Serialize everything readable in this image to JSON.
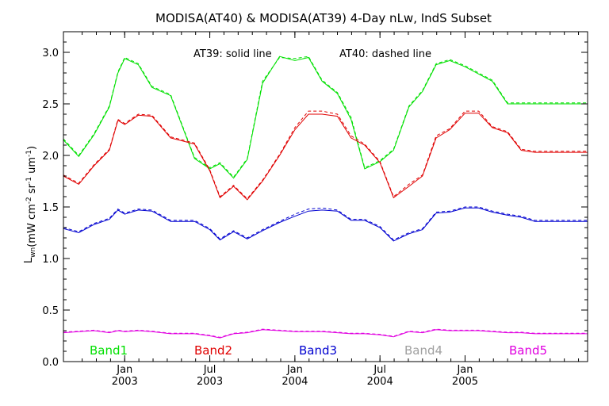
{
  "chart_data": {
    "type": "line",
    "title": "MODISA(AT40) & MODISA(AT39) 4-Day nLw, IndS Subset",
    "ylabel_main": "L",
    "ylabel_sub": "wn",
    "ylabel_unit": "(mW cm",
    "ylabel_sup1": "-2",
    "ylabel_sr": " sr",
    "ylabel_sup2": "-1",
    "ylabel_um": " um",
    "ylabel_sup3": "-1",
    "ylabel_close": ")",
    "annotation_solid": "AT39: solid line",
    "annotation_dashed": "AT40: dashed line",
    "ylim": [
      0.0,
      3.2
    ],
    "y_ticks": [
      "0.0",
      "0.5",
      "1.0",
      "1.5",
      "2.0",
      "2.5",
      "3.0"
    ],
    "x_ticks": [
      {
        "month": "Jan",
        "year": "2003",
        "t": 2003.0
      },
      {
        "month": "Jul",
        "year": "2003",
        "t": 2003.5
      },
      {
        "month": "Jan",
        "year": "2004",
        "t": 2004.0
      },
      {
        "month": "Jul",
        "year": "2004",
        "t": 2004.5
      },
      {
        "month": "Jan",
        "year": "2005",
        "t": 2005.0
      }
    ],
    "xlim": [
      2002.64,
      2005.72
    ],
    "x": [
      2002.64,
      2002.73,
      2002.82,
      2002.91,
      2002.96,
      2003.0,
      2003.08,
      2003.16,
      2003.27,
      2003.41,
      2003.5,
      2003.56,
      2003.64,
      2003.72,
      2003.81,
      2003.91,
      2004.0,
      2004.08,
      2004.16,
      2004.25,
      2004.33,
      2004.41,
      2004.5,
      2004.58,
      2004.67,
      2004.75,
      2004.83,
      2004.91,
      2005.0,
      2005.08,
      2005.16,
      2005.25,
      2005.33,
      2005.41,
      2005.5,
      2005.58,
      2005.66,
      2005.72
    ],
    "series": [
      {
        "name": "Band1",
        "color": "#00e000",
        "solid": [
          2.15,
          1.99,
          2.2,
          2.47,
          2.8,
          2.94,
          2.88,
          2.66,
          2.58,
          1.97,
          1.87,
          1.92,
          1.78,
          1.96,
          2.7,
          2.96,
          2.92,
          2.95,
          2.72,
          2.6,
          2.35,
          1.87,
          1.94,
          2.05,
          2.47,
          2.62,
          2.88,
          2.92,
          2.86,
          2.79,
          2.72,
          2.5,
          2.5,
          2.5,
          2.5,
          2.5,
          2.5,
          2.5
        ],
        "dashed": [
          2.16,
          2.0,
          2.21,
          2.48,
          2.81,
          2.95,
          2.89,
          2.67,
          2.59,
          1.98,
          1.88,
          1.93,
          1.79,
          1.97,
          2.72,
          2.95,
          2.94,
          2.96,
          2.73,
          2.61,
          2.37,
          1.88,
          1.95,
          2.06,
          2.48,
          2.63,
          2.89,
          2.93,
          2.87,
          2.8,
          2.73,
          2.51,
          2.51,
          2.51,
          2.51,
          2.51,
          2.51,
          2.51
        ]
      },
      {
        "name": "Band2",
        "color": "#e00000",
        "solid": [
          1.8,
          1.72,
          1.9,
          2.05,
          2.34,
          2.3,
          2.39,
          2.38,
          2.17,
          2.11,
          1.85,
          1.59,
          1.7,
          1.57,
          1.75,
          2.0,
          2.25,
          2.4,
          2.4,
          2.38,
          2.17,
          2.1,
          1.93,
          1.59,
          1.7,
          1.8,
          2.17,
          2.25,
          2.41,
          2.41,
          2.27,
          2.22,
          2.05,
          2.03,
          2.03,
          2.03,
          2.03,
          2.03
        ],
        "dashed": [
          1.81,
          1.73,
          1.91,
          2.06,
          2.35,
          2.31,
          2.4,
          2.39,
          2.18,
          2.12,
          1.86,
          1.6,
          1.71,
          1.58,
          1.76,
          2.01,
          2.27,
          2.43,
          2.43,
          2.4,
          2.19,
          2.11,
          1.94,
          1.6,
          1.72,
          1.81,
          2.19,
          2.26,
          2.43,
          2.43,
          2.28,
          2.23,
          2.06,
          2.04,
          2.04,
          2.04,
          2.04,
          2.04
        ]
      },
      {
        "name": "Band3",
        "color": "#0000d0",
        "solid": [
          1.29,
          1.25,
          1.33,
          1.38,
          1.47,
          1.43,
          1.47,
          1.46,
          1.36,
          1.36,
          1.28,
          1.18,
          1.26,
          1.19,
          1.27,
          1.35,
          1.41,
          1.46,
          1.47,
          1.46,
          1.37,
          1.37,
          1.3,
          1.17,
          1.24,
          1.28,
          1.44,
          1.45,
          1.49,
          1.49,
          1.45,
          1.42,
          1.4,
          1.36,
          1.36,
          1.36,
          1.36,
          1.36
        ],
        "dashed": [
          1.3,
          1.26,
          1.34,
          1.39,
          1.48,
          1.44,
          1.48,
          1.47,
          1.37,
          1.37,
          1.29,
          1.19,
          1.27,
          1.2,
          1.28,
          1.36,
          1.43,
          1.48,
          1.49,
          1.47,
          1.38,
          1.38,
          1.31,
          1.18,
          1.25,
          1.29,
          1.45,
          1.46,
          1.5,
          1.5,
          1.46,
          1.43,
          1.41,
          1.37,
          1.37,
          1.37,
          1.37,
          1.37
        ]
      },
      {
        "name": "Band4",
        "color": "#a0a0a0",
        "solid": [],
        "dashed": []
      },
      {
        "name": "Band5",
        "color": "#e000e0",
        "solid": [
          0.28,
          0.29,
          0.3,
          0.28,
          0.3,
          0.29,
          0.3,
          0.29,
          0.27,
          0.27,
          0.25,
          0.23,
          0.27,
          0.28,
          0.31,
          0.3,
          0.29,
          0.29,
          0.29,
          0.28,
          0.27,
          0.27,
          0.26,
          0.24,
          0.29,
          0.28,
          0.31,
          0.3,
          0.3,
          0.3,
          0.29,
          0.28,
          0.28,
          0.27,
          0.27,
          0.27,
          0.27,
          0.27
        ],
        "dashed": [
          0.285,
          0.295,
          0.305,
          0.285,
          0.305,
          0.295,
          0.305,
          0.295,
          0.275,
          0.275,
          0.255,
          0.235,
          0.275,
          0.285,
          0.315,
          0.305,
          0.295,
          0.295,
          0.295,
          0.285,
          0.275,
          0.275,
          0.265,
          0.245,
          0.295,
          0.285,
          0.315,
          0.305,
          0.305,
          0.305,
          0.295,
          0.285,
          0.285,
          0.275,
          0.275,
          0.275,
          0.275,
          0.275
        ]
      }
    ],
    "legend_placement": "bottom"
  }
}
